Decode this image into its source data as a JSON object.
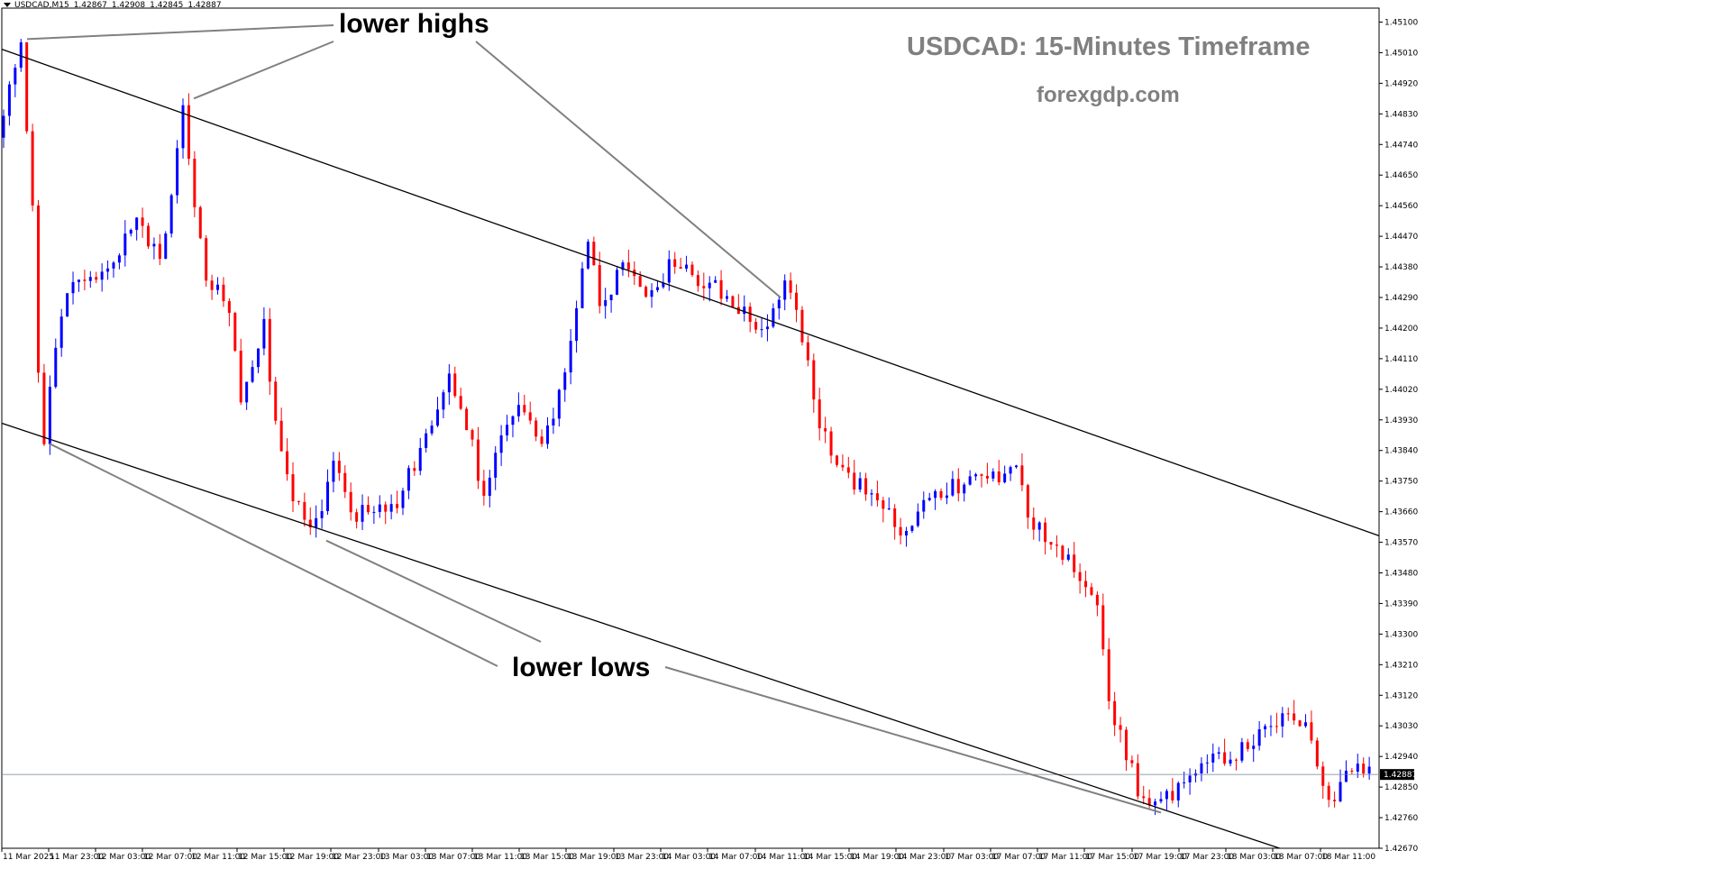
{
  "header": {
    "symbol": "USDCAD,M15",
    "open": "1.42867",
    "high": "1.42908",
    "low": "1.42845",
    "close": "1.42887"
  },
  "watermark": {
    "title": "USDCAD: 15-Minutes Timeframe",
    "site": "forexgdp.com"
  },
  "annotations": {
    "highs": "lower highs",
    "lows": "lower lows"
  },
  "colors": {
    "bull": "#0000ff",
    "bear": "#ff0000",
    "channel": "#000000",
    "annotation_line": "#808080",
    "current_price_line": "#708090",
    "price_tag_bg": "#000000"
  },
  "chart_data": {
    "type": "candlestick",
    "symbol": "USDCAD",
    "timeframe": "M15",
    "title": "USDCAD: 15-Minutes Timeframe",
    "ylim": [
      1.4264,
      1.4514
    ],
    "y_ticks": [
      "1.45100",
      "1.45010",
      "1.44920",
      "1.44830",
      "1.44740",
      "1.44650",
      "1.44560",
      "1.44470",
      "1.44380",
      "1.44290",
      "1.44200",
      "1.44110",
      "1.44020",
      "1.43930",
      "1.43840",
      "1.43750",
      "1.43660",
      "1.43570",
      "1.43480",
      "1.43390",
      "1.43300",
      "1.43210",
      "1.43120",
      "1.43030",
      "1.42940",
      "1.42850",
      "1.42760",
      "1.42670"
    ],
    "x_ticks": [
      "11 Mar 2025",
      "11 Mar 23:00",
      "12 Mar 03:00",
      "12 Mar 07:00",
      "12 Mar 11:00",
      "12 Mar 15:00",
      "12 Mar 19:00",
      "12 Mar 23:00",
      "13 Mar 03:00",
      "13 Mar 07:00",
      "13 Mar 11:00",
      "13 Mar 15:00",
      "13 Mar 19:00",
      "13 Mar 23:00",
      "14 Mar 03:00",
      "14 Mar 07:00",
      "14 Mar 11:00",
      "14 Mar 15:00",
      "14 Mar 19:00",
      "14 Mar 23:00",
      "17 Mar 03:00",
      "17 Mar 07:00",
      "17 Mar 11:00",
      "17 Mar 15:00",
      "17 Mar 19:00",
      "17 Mar 23:00",
      "18 Mar 03:00",
      "18 Mar 07:00",
      "18 Mar 11:00"
    ],
    "current_price": "1.42887",
    "price_path": [
      [
        0,
        1.4476
      ],
      [
        4,
        1.4502
      ],
      [
        6,
        1.4458
      ],
      [
        7,
        1.4405
      ],
      [
        8,
        1.4388
      ],
      [
        10,
        1.4415
      ],
      [
        12,
        1.4432
      ],
      [
        16,
        1.4433
      ],
      [
        20,
        1.4442
      ],
      [
        24,
        1.445
      ],
      [
        28,
        1.4443
      ],
      [
        30,
        1.4458
      ],
      [
        32,
        1.4488
      ],
      [
        34,
        1.4455
      ],
      [
        36,
        1.4436
      ],
      [
        40,
        1.4425
      ],
      [
        42,
        1.44
      ],
      [
        46,
        1.442
      ],
      [
        48,
        1.4392
      ],
      [
        50,
        1.4375
      ],
      [
        53,
        1.4362
      ],
      [
        56,
        1.4368
      ],
      [
        58,
        1.4383
      ],
      [
        61,
        1.4364
      ],
      [
        64,
        1.4367
      ],
      [
        68,
        1.4366
      ],
      [
        70,
        1.4373
      ],
      [
        74,
        1.4388
      ],
      [
        78,
        1.4404
      ],
      [
        82,
        1.4385
      ],
      [
        84,
        1.437
      ],
      [
        86,
        1.4384
      ],
      [
        90,
        1.4398
      ],
      [
        94,
        1.4387
      ],
      [
        97,
        1.44
      ],
      [
        100,
        1.4425
      ],
      [
        102,
        1.4446
      ],
      [
        104,
        1.4427
      ],
      [
        108,
        1.4437
      ],
      [
        112,
        1.443
      ],
      [
        116,
        1.4438
      ],
      [
        120,
        1.4436
      ],
      [
        124,
        1.4432
      ],
      [
        128,
        1.4425
      ],
      [
        132,
        1.442
      ],
      [
        136,
        1.4432
      ],
      [
        138,
        1.4424
      ],
      [
        140,
        1.441
      ],
      [
        142,
        1.439
      ],
      [
        146,
        1.4378
      ],
      [
        150,
        1.4372
      ],
      [
        154,
        1.4365
      ],
      [
        157,
        1.436
      ],
      [
        160,
        1.4368
      ],
      [
        164,
        1.4372
      ],
      [
        168,
        1.4376
      ],
      [
        172,
        1.4377
      ],
      [
        176,
        1.4378
      ],
      [
        178,
        1.4365
      ],
      [
        182,
        1.4358
      ],
      [
        186,
        1.435
      ],
      [
        190,
        1.4338
      ],
      [
        192,
        1.431
      ],
      [
        196,
        1.429
      ],
      [
        198,
        1.428
      ],
      [
        202,
        1.4282
      ],
      [
        206,
        1.4288
      ],
      [
        210,
        1.4293
      ],
      [
        214,
        1.4295
      ],
      [
        218,
        1.4301
      ],
      [
        222,
        1.4305
      ],
      [
        226,
        1.4302
      ],
      [
        228,
        1.429
      ],
      [
        230,
        1.428
      ],
      [
        233,
        1.429
      ],
      [
        236,
        1.4289
      ]
    ],
    "channel_upper": {
      "start": [
        "11 Mar 2025",
        1.4502
      ],
      "end": [
        "18 Mar 11:00",
        1.4365
      ]
    },
    "channel_lower": {
      "start": [
        "11 Mar 2025",
        1.4392
      ],
      "end": [
        "18 Mar 11:00",
        1.4263
      ]
    },
    "annotation_callouts": [
      {
        "label": "lower highs",
        "points": [
          1.4505,
          1.44875,
          1.4429
        ]
      },
      {
        "label": "lower lows",
        "points": [
          1.4386,
          1.43575,
          1.42775
        ]
      }
    ]
  }
}
